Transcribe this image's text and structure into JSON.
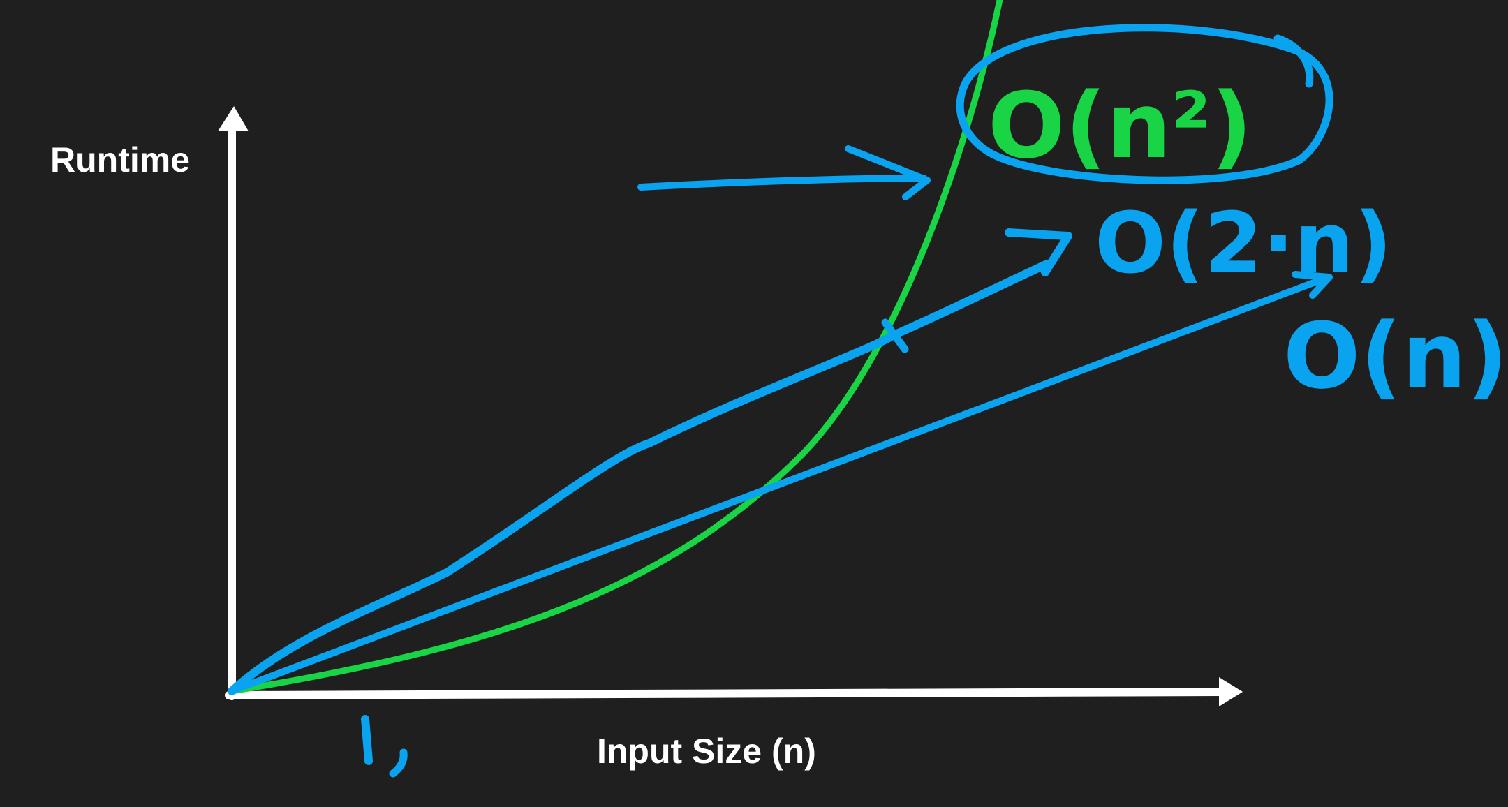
{
  "chart_data": {
    "type": "line",
    "ylabel": "Runtime",
    "xlabel": "Input Size (n)",
    "tick_label": "1,",
    "grid": false,
    "series": [
      {
        "name": "O(n²)",
        "color": "#19d444",
        "shape": "quadratic"
      },
      {
        "name": "O(2·n)",
        "color": "#0aa3f0",
        "shape": "linear-steep"
      },
      {
        "name": "O(n)",
        "color": "#0aa3f0",
        "shape": "linear"
      }
    ],
    "annotations": {
      "highlight": "O(n²) circled",
      "arrow": "arrow pointing to O(n²) curve"
    }
  },
  "colors": {
    "background": "#1f1f1f",
    "axes": "#ffffff",
    "green": "#19d444",
    "blue": "#0aa3f0"
  }
}
